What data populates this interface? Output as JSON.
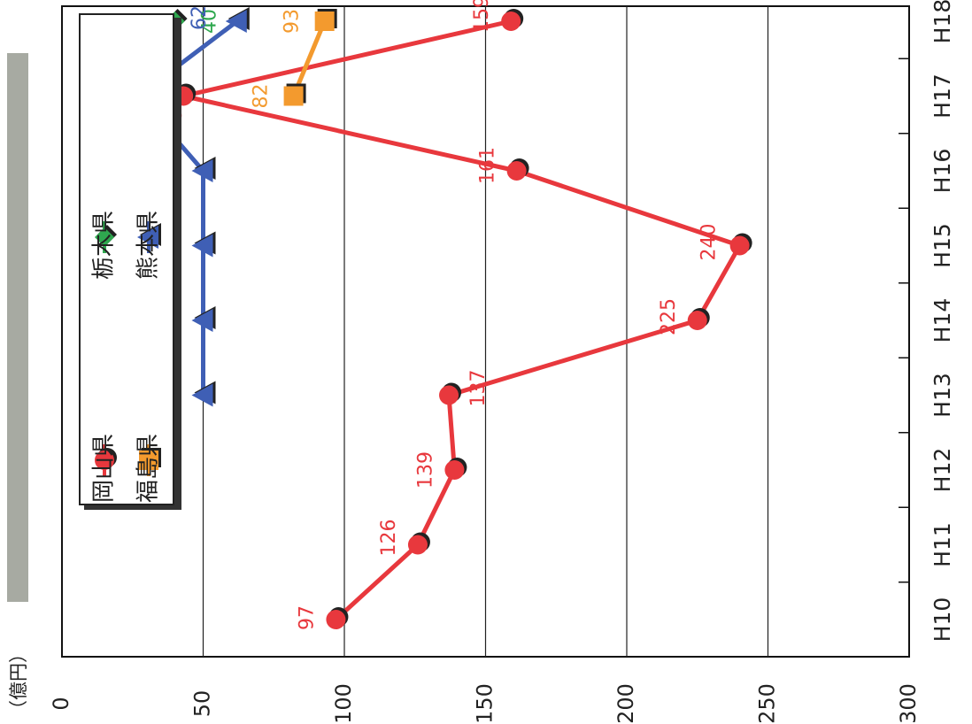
{
  "unit_label": "（億円）",
  "chart_data": {
    "type": "line",
    "orientation": "rotated-90-clockwise",
    "categories": [
      "H10",
      "H11",
      "H12",
      "H13",
      "H14",
      "H15",
      "H16",
      "H17",
      "H18"
    ],
    "ylim": [
      0,
      300
    ],
    "yticks": [
      "0",
      "50",
      "100",
      "150",
      "200",
      "250",
      "300"
    ],
    "grid": true,
    "legend_position": "top",
    "series": [
      {
        "name": "岡山県",
        "color": "#e8383d",
        "marker": "circle",
        "values": [
          97,
          126,
          139,
          137,
          225,
          240,
          161,
          43,
          159
        ],
        "labels": [
          "97",
          "126",
          "139",
          "137",
          "225",
          "240",
          "161",
          "43",
          "159"
        ]
      },
      {
        "name": "福島県",
        "color": "#f39a2e",
        "marker": "square",
        "values": [
          null,
          null,
          null,
          null,
          null,
          null,
          null,
          82,
          93
        ],
        "labels": [
          "",
          "",
          "",
          "",
          "",
          "",
          "",
          "82",
          "93"
        ]
      },
      {
        "name": "栃木県",
        "color": "#2fa84f",
        "marker": "diamond",
        "values": [
          null,
          null,
          null,
          null,
          null,
          null,
          null,
          null,
          40
        ],
        "labels": [
          "",
          "",
          "",
          "",
          "",
          "",
          "",
          "",
          "40"
        ]
      },
      {
        "name": "熊本県",
        "color": "#3f5fb5",
        "marker": "triangle",
        "values": [
          null,
          null,
          null,
          50,
          50,
          50,
          50,
          27,
          62
        ],
        "labels": [
          "",
          "",
          "",
          "50",
          "50",
          "50",
          "50",
          "27",
          "62"
        ]
      }
    ]
  }
}
